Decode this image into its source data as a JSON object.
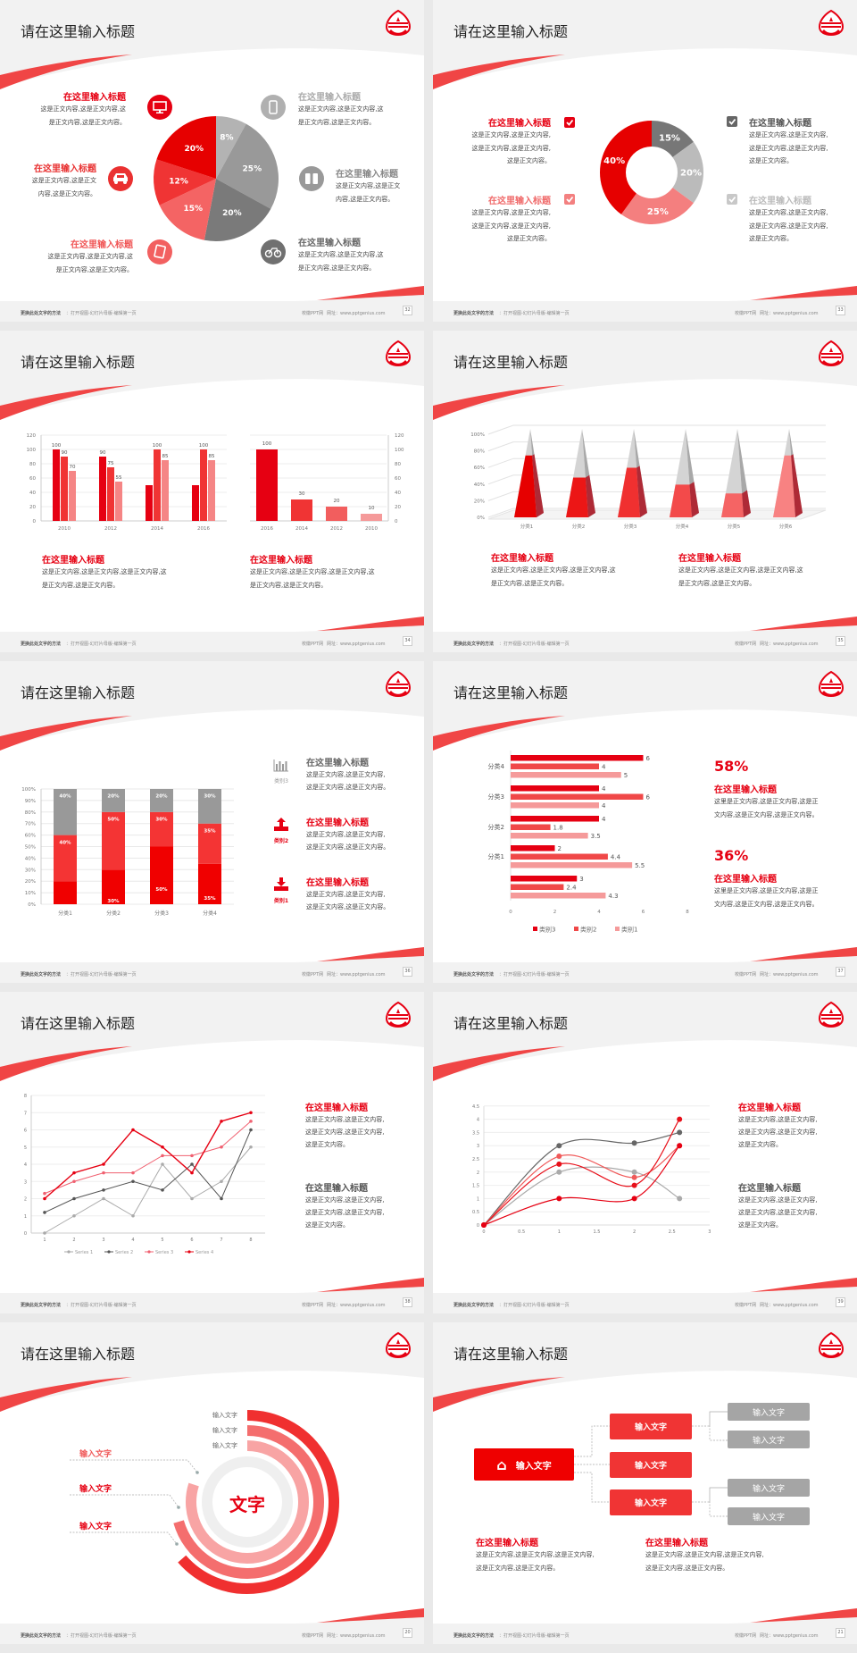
{
  "common": {
    "footer_left_bold": "更换此处文字的方法",
    "footer_left": "：打开视图-幻灯片母版-编辑第一页",
    "footer_site": "校徽PPT网",
    "footer_url": "网址：www.pptgenius.com"
  },
  "colors": {
    "red": "#e60012",
    "red2": "#f03c3c",
    "red3": "#f47a7a",
    "pink": "#f7a3a3",
    "gray": "#999999",
    "dark_gray": "#6f6f6f",
    "light_gray": "#bdbdbd"
  },
  "slides": [
    {
      "page": "32",
      "title": "请在这里输入标题",
      "left": [
        {
          "title": "在这里输入标题",
          "lines": [
            "这是正文内容,这是正文内容,这",
            "是正文内容,这是正文内容。"
          ],
          "icon": "monitor-icon"
        },
        {
          "title": "在这里输入标题",
          "lines": [
            "这是正文内容,这是正文",
            "内容,这是正文内容。"
          ],
          "icon": "car-icon"
        },
        {
          "title": "在这里输入标题",
          "lines": [
            "这是正文内容,这是正文内容,这",
            "是正文内容,这是正文内容。"
          ],
          "icon": "book-icon"
        }
      ],
      "right": [
        {
          "title": "在这里输入标题",
          "lines": [
            "这是正文内容,这是正文内容,这",
            "是正文内容,这是正文内容。"
          ],
          "icon": "phone-icon"
        },
        {
          "title": "在这里输入标题",
          "lines": [
            "这是正文内容,这是正文",
            "内容,这是正文内容。"
          ],
          "icon": "binoculars-icon"
        },
        {
          "title": "在这里输入标题",
          "lines": [
            "这是正文内容,这是正文内容,这",
            "是正文内容,这是正文内容。"
          ],
          "icon": "bicycle-icon"
        }
      ]
    },
    {
      "page": "33",
      "title": "请在这里输入标题",
      "left": [
        {
          "title": "在这里输入标题",
          "lines": [
            "这是正文内容,这是正文内容,",
            "这是正文内容,这是正文内容,",
            "这是正文内容。"
          ]
        },
        {
          "title": "在这里输入标题",
          "lines": [
            "这是正文内容,这是正文内容,",
            "这是正文内容,这是正文内容,",
            "这是正文内容。"
          ]
        }
      ],
      "right": [
        {
          "title": "在这里输入标题",
          "lines": [
            "这是正文内容,这是正文内容,",
            "这是正文内容,这是正文内容,",
            "这是正文内容。"
          ]
        },
        {
          "title": "在这里输入标题",
          "lines": [
            "这是正文内容,这是正文内容,",
            "这是正文内容,这是正文内容,",
            "这是正文内容。"
          ]
        }
      ]
    },
    {
      "page": "34",
      "title": "请在这里输入标题",
      "blocks": [
        {
          "title": "在这里输入标题",
          "lines": [
            "这是正文内容,这是正文内容,这是正文内容,这",
            "是正文内容,这是正文内容。"
          ]
        },
        {
          "title": "在这里输入标题",
          "lines": [
            "这是正文内容,这是正文内容,这是正文内容,这",
            "是正文内容,这是正文内容。"
          ]
        }
      ]
    },
    {
      "page": "35",
      "title": "请在这里输入标题",
      "blocks": [
        {
          "title": "在这里输入标题",
          "lines": [
            "这是正文内容,这是正文内容,这是正文内容,这",
            "是正文内容,这是正文内容。"
          ]
        },
        {
          "title": "在这里输入标题",
          "lines": [
            "这是正文内容,这是正文内容,这是正文内容,这",
            "是正文内容,这是正文内容。"
          ]
        }
      ]
    },
    {
      "page": "36",
      "title": "请在这里输入标题",
      "items": [
        {
          "label": "类别3",
          "icon": "bar-chart-icon",
          "title": "在这里输入标题",
          "lines": [
            "这是正文内容,这是正文内容,",
            "这是正文内容,这是正文内容。"
          ]
        },
        {
          "label": "类别2",
          "icon": "upload-icon",
          "title": "在这里输入标题",
          "lines": [
            "这是正文内容,这是正文内容,",
            "这是正文内容,这是正文内容。"
          ]
        },
        {
          "label": "类别1",
          "icon": "download-icon",
          "title": "在这里输入标题",
          "lines": [
            "这是正文内容,这是正文内容,",
            "这是正文内容,这是正文内容。"
          ]
        }
      ]
    },
    {
      "page": "37",
      "title": "请在这里输入标题",
      "stats": [
        {
          "value": "58%",
          "title": "在这里输入标题",
          "lines": [
            "这里是正文内容,这是正文内容,这是正",
            "文内容,这是正文内容,这是正文内容。"
          ]
        },
        {
          "value": "36%",
          "title": "在这里输入标题",
          "lines": [
            "这里是正文内容,这是正文内容,这是正",
            "文内容,这是正文内容,这是正文内容。"
          ]
        }
      ]
    },
    {
      "page": "38",
      "title": "请在这里输入标题",
      "blocks": [
        {
          "title": "在这里输入标题",
          "lines": [
            "这是正文内容,这是正文内容,",
            "这是正文内容,这是正文内容,",
            "这是正文内容。"
          ]
        },
        {
          "title": "在这里输入标题",
          "lines": [
            "这是正文内容,这是正文内容,",
            "这是正文内容,这是正文内容,",
            "这是正文内容。"
          ]
        }
      ]
    },
    {
      "page": "39",
      "title": "请在这里输入标题",
      "blocks": [
        {
          "title": "在这里输入标题",
          "lines": [
            "这是正文内容,这是正文内容,",
            "这是正文内容,这是正文内容,",
            "这是正文内容。"
          ]
        },
        {
          "title": "在这里输入标题",
          "lines": [
            "这是正文内容,这是正文内容,",
            "这是正文内容,这是正文内容,",
            "这是正文内容。"
          ]
        }
      ]
    },
    {
      "page": "20",
      "title": "请在这里输入标题",
      "center": "文字",
      "top_labels": [
        "输入文字",
        "输入文字",
        "输入文字"
      ],
      "left_labels": [
        "输入文字",
        "输入文字",
        "输入文字"
      ]
    },
    {
      "page": "21",
      "title": "请在这里输入标题",
      "root": "输入文字",
      "root_icon": "home-icon",
      "mid": [
        "输入文字",
        "输入文字",
        "输入文字"
      ],
      "leaf": [
        "输入文字",
        "输入文字",
        "输入文字",
        "输入文字"
      ],
      "blocks": [
        {
          "title": "在这里输入标题",
          "lines": [
            "这是正文内容,这是正文内容,这是正文内容,",
            "这是正文内容,这是正文内容。"
          ]
        },
        {
          "title": "在这里输入标题",
          "lines": [
            "这是正文内容,这是正文内容,这是正文内容,",
            "这是正文内容,这是正文内容。"
          ]
        }
      ]
    }
  ],
  "chart_data": [
    {
      "type": "pie",
      "values": [
        8,
        25,
        20,
        15,
        12,
        20
      ],
      "labels": [
        "8%",
        "25%",
        "20%",
        "15%",
        "12%",
        "20%"
      ],
      "colors": [
        "#b3b3b3",
        "#999999",
        "#7a7a7a",
        "#f46464",
        "#f03434",
        "#e60000"
      ]
    },
    {
      "type": "pie",
      "donut": true,
      "values": [
        15,
        20,
        25,
        40
      ],
      "labels": [
        "15%",
        "20%",
        "25%",
        "40%"
      ],
      "colors": [
        "#777777",
        "#bbbbbb",
        "#f47f7f",
        "#e60000"
      ]
    },
    {
      "type": "bar",
      "categories": [
        "2010",
        "2012",
        "2014",
        "2016"
      ],
      "series": [
        {
          "values": [
            100,
            90,
            50,
            50
          ],
          "labels": [
            "100",
            "90",
            "",
            ""
          ]
        },
        {
          "values": [
            90,
            75,
            100,
            100
          ],
          "labels": [
            "90",
            "75",
            "100",
            "100"
          ]
        },
        {
          "values": [
            70,
            55,
            85,
            85
          ],
          "labels": [
            "70",
            "55",
            "85",
            "85"
          ]
        }
      ],
      "colors": [
        "#e60012",
        "#f03434",
        "#f58585"
      ],
      "ylim": [
        0,
        120
      ],
      "yticks": [
        "0",
        "20",
        "40",
        "60",
        "80",
        "100",
        "120"
      ],
      "grid": true
    },
    {
      "type": "bar",
      "categories": [
        "2016",
        "2014",
        "2012",
        "2010"
      ],
      "values": [
        100,
        30,
        20,
        10
      ],
      "labels": [
        "100",
        "30",
        "20",
        "10"
      ],
      "colors": [
        "#e60012",
        "#f03434",
        "#f25e5e",
        "#f59a9a"
      ],
      "ylim": [
        0,
        120
      ],
      "yticks": [
        "0",
        "20",
        "40",
        "60",
        "80",
        "100",
        "120"
      ],
      "y_axis": "right",
      "grid": true
    },
    {
      "type": "bar",
      "style": "3d-pyramid",
      "categories": [
        "分类1",
        "分类2",
        "分类3",
        "分类4",
        "分类5",
        "分类6"
      ],
      "values": [
        70,
        45,
        56,
        37,
        27,
        70
      ],
      "ylim": [
        0,
        100
      ],
      "yticks": [
        "0%",
        "20%",
        "40%",
        "60%",
        "80%",
        "100%"
      ],
      "colors": [
        "#e60000",
        "#ec1616",
        "#f03030",
        "#f34a4a",
        "#f56464",
        "#f88282"
      ],
      "grid": true
    },
    {
      "type": "bar",
      "stacked": true,
      "categories": [
        "分类1",
        "分类2",
        "分类3",
        "分类4"
      ],
      "series": [
        {
          "values": [
            20,
            30,
            50,
            35
          ],
          "labels": [
            "20%",
            "30%",
            "50%",
            "35%"
          ]
        },
        {
          "values": [
            40,
            50,
            30,
            35
          ],
          "labels": [
            "40%",
            "50%",
            "30%",
            "35%"
          ]
        },
        {
          "values": [
            40,
            20,
            20,
            30
          ],
          "labels": [
            "40%",
            "20%",
            "20%",
            "30%"
          ]
        }
      ],
      "colors": [
        "#f00000",
        "#f43434",
        "#999999"
      ],
      "ylim": [
        0,
        100
      ],
      "yticks": [
        "0%",
        "10%",
        "20%",
        "30%",
        "40%",
        "50%",
        "60%",
        "70%",
        "80%",
        "90%",
        "100%"
      ],
      "grid": true
    },
    {
      "type": "bar",
      "orientation": "horizontal",
      "categories": [
        "分类4",
        "分类3",
        "分类2",
        "分类1",
        ""
      ],
      "series": [
        {
          "name": "类别3",
          "values": [
            6,
            4,
            4,
            2,
            3
          ],
          "labels": [
            "6",
            "4",
            "4",
            "2",
            "3"
          ]
        },
        {
          "name": "类别2",
          "values": [
            4,
            6,
            1.8,
            4.4,
            2.4
          ],
          "labels": [
            "4",
            "6",
            "1.8",
            "4.4",
            "2.4"
          ]
        },
        {
          "name": "类别1",
          "values": [
            5,
            4,
            3.5,
            5.5,
            4.3
          ],
          "labels": [
            "5",
            "4",
            "3.5",
            "5.5",
            "4.3"
          ]
        }
      ],
      "colors": [
        "#e60012",
        "#f04848",
        "#f59a9a"
      ],
      "xlim": [
        0,
        8
      ],
      "xticks": [
        "0",
        "2",
        "4",
        "6",
        "8"
      ],
      "legend": "bottom"
    },
    {
      "type": "line",
      "x": [
        1,
        2,
        3,
        4,
        5,
        6,
        7,
        8
      ],
      "xticks": [
        "1",
        "2",
        "3",
        "4",
        "5",
        "6",
        "7",
        "8"
      ],
      "series": [
        {
          "name": "Series 1",
          "values": [
            0,
            1,
            2,
            1,
            4,
            2,
            3,
            5
          ]
        },
        {
          "name": "Series 2",
          "values": [
            1.2,
            2,
            2.5,
            3,
            2.5,
            4,
            2,
            6
          ]
        },
        {
          "name": "Series 3",
          "values": [
            2.3,
            3,
            3.5,
            3.5,
            4.5,
            4.5,
            5,
            6.5
          ]
        },
        {
          "name": "Series 4",
          "values": [
            2,
            3.5,
            4,
            6,
            5,
            3.5,
            6.5,
            7
          ]
        }
      ],
      "colors": [
        "#aaaaaa",
        "#555555",
        "#f06070",
        "#e60012"
      ],
      "ylim": [
        0,
        8
      ],
      "yticks": [
        "0",
        "1",
        "2",
        "3",
        "4",
        "5",
        "6",
        "7",
        "8"
      ],
      "legend": "bottom",
      "grid": true
    },
    {
      "type": "scatter",
      "smooth": true,
      "x": [
        0,
        1,
        2,
        2.6
      ],
      "series": [
        {
          "values": [
            0,
            3,
            3.1,
            3.5
          ]
        },
        {
          "values": [
            0,
            2,
            2,
            1
          ]
        },
        {
          "values": [
            0,
            2.6,
            1.8,
            3
          ]
        },
        {
          "values": [
            0,
            2.3,
            1.5,
            4
          ]
        },
        {
          "values": [
            0,
            1,
            1,
            3
          ]
        }
      ],
      "colors": [
        "#666666",
        "#aaaaaa",
        "#f05a5a",
        "#e8101a",
        "#e60012"
      ],
      "xlim": [
        0,
        3
      ],
      "ylim": [
        0,
        4.5
      ],
      "xticks": [
        "0",
        "0.5",
        "1",
        "1.5",
        "2",
        "2.5",
        "3"
      ],
      "yticks": [
        "0",
        "0.5",
        "1",
        "1.5",
        "2",
        "2.5",
        "3",
        "3.5",
        "4",
        "4.5"
      ],
      "grid": true
    }
  ]
}
